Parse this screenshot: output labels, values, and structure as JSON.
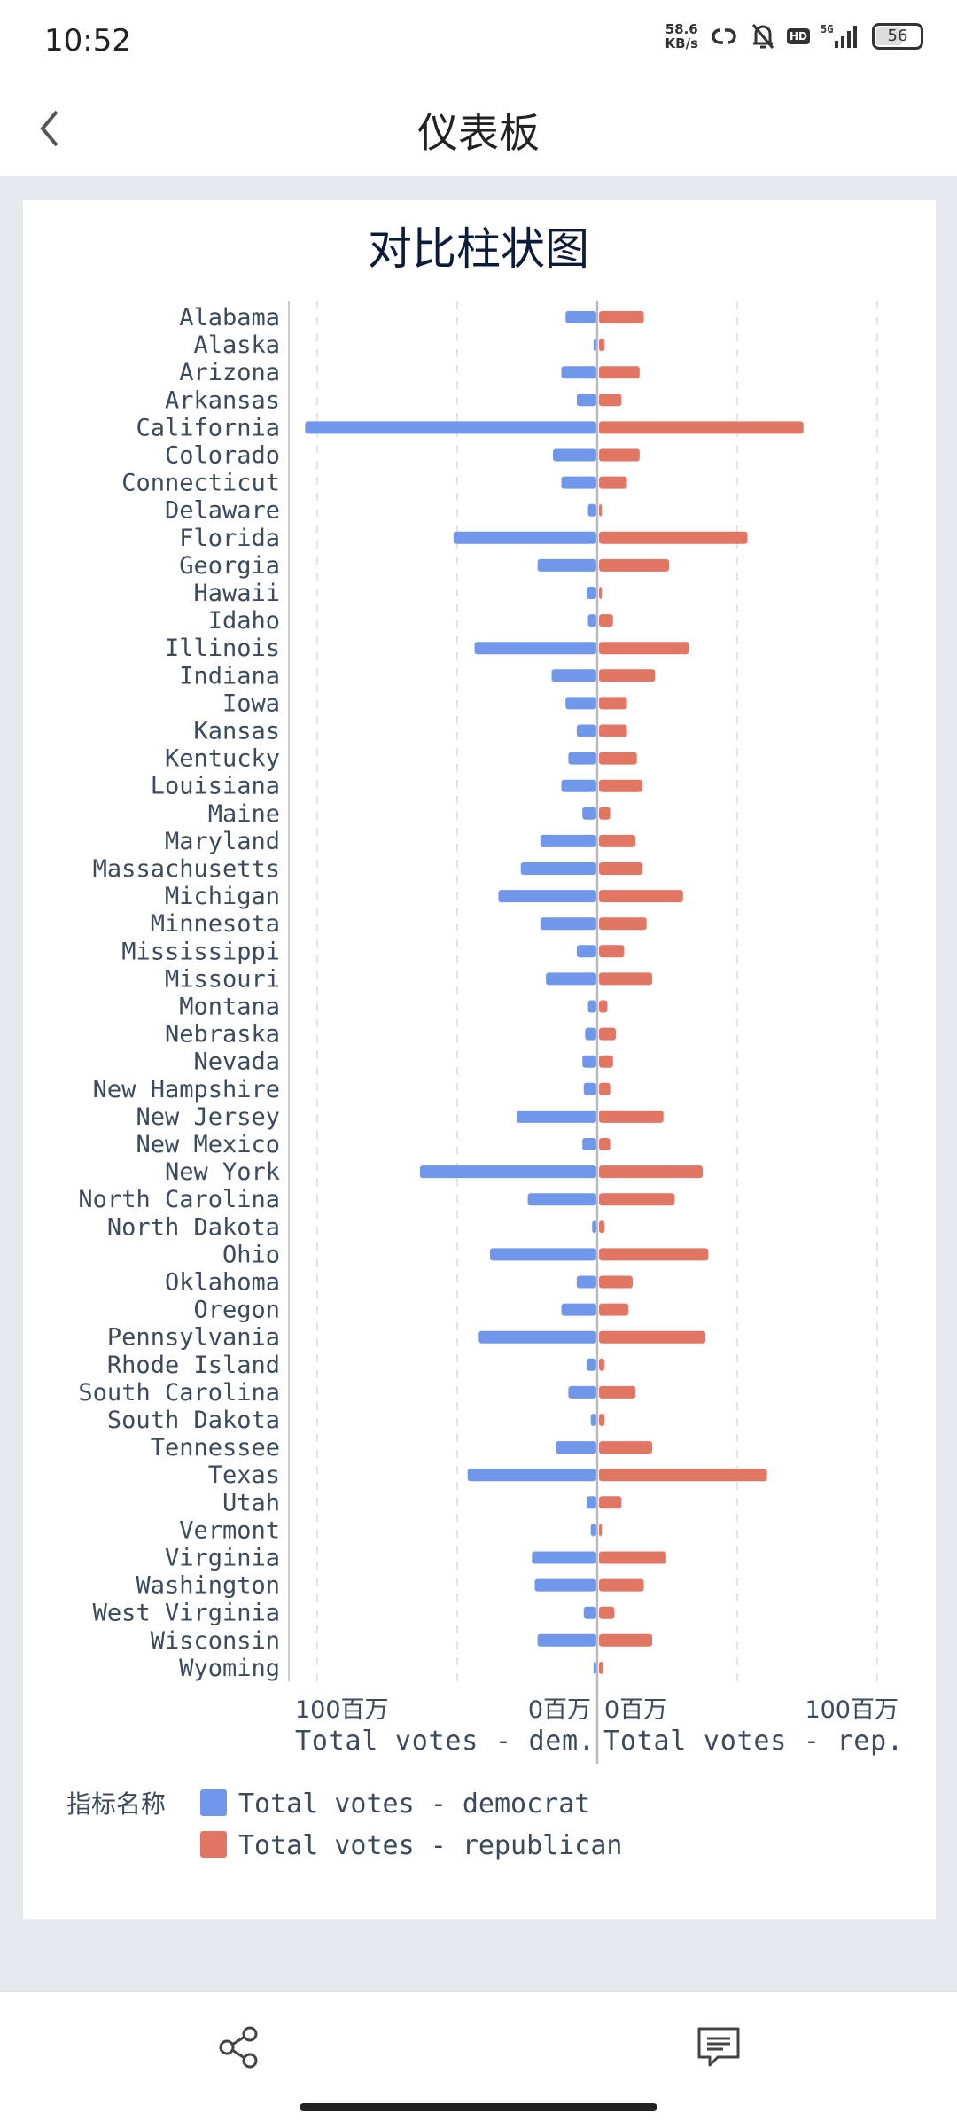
{
  "status_bar": {
    "time": "10:52",
    "net_speed_value": "58.6",
    "net_speed_unit": "KB/s",
    "hd": "HD",
    "network": "5G",
    "battery": "56"
  },
  "header": {
    "title": "仪表板"
  },
  "colors": {
    "democrat": "#7097ea",
    "republican": "#e07663"
  },
  "chart_data": {
    "type": "bar",
    "title": "对比柱状图",
    "orientation": "horizontal-butterfly",
    "categories": [
      "Alabama",
      "Alaska",
      "Arizona",
      "Arkansas",
      "California",
      "Colorado",
      "Connecticut",
      "Delaware",
      "Florida",
      "Georgia",
      "Hawaii",
      "Idaho",
      "Illinois",
      "Indiana",
      "Iowa",
      "Kansas",
      "Kentucky",
      "Louisiana",
      "Maine",
      "Maryland",
      "Massachusetts",
      "Michigan",
      "Minnesota",
      "Mississippi",
      "Missouri",
      "Montana",
      "Nebraska",
      "Nevada",
      "New Hampshire",
      "New Jersey",
      "New Mexico",
      "New York",
      "North Carolina",
      "North Dakota",
      "Ohio",
      "Oklahoma",
      "Oregon",
      "Pennsylvania",
      "Rhode Island",
      "South Carolina",
      "South Dakota",
      "Tennessee",
      "Texas",
      "Utah",
      "Vermont",
      "Virginia",
      "Washington",
      "West Virginia",
      "Wisconsin",
      "Wyoming"
    ],
    "series": [
      {
        "name": "Total votes - democrat",
        "axis_title": "Total votes - dem.",
        "values": [
          11,
          1,
          12.5,
          7,
          104,
          15.5,
          12.5,
          3,
          51,
          21,
          3.5,
          3,
          43.5,
          16,
          11,
          7,
          10,
          12.5,
          5,
          20,
          27,
          35,
          20,
          7,
          18,
          3,
          4,
          5,
          4.5,
          28.5,
          5,
          63,
          24.5,
          1.5,
          38,
          7,
          12.5,
          42,
          3.5,
          10,
          2,
          14.5,
          46,
          3.5,
          2,
          23,
          22,
          4.5,
          21,
          1
        ]
      },
      {
        "name": "Total votes - republican",
        "axis_title": "Total votes - rep.",
        "values": [
          16,
          2,
          14.5,
          8,
          73,
          14.5,
          10,
          1,
          53,
          25,
          1,
          5,
          32,
          20,
          10,
          10,
          13.5,
          15.5,
          4,
          13,
          15.5,
          30,
          17,
          9,
          19,
          3,
          6,
          5,
          4,
          23,
          4,
          37,
          27,
          2,
          39,
          12,
          10.5,
          38,
          2,
          13,
          2,
          19,
          60,
          8,
          1,
          24,
          16,
          5.5,
          19,
          1.5
        ]
      },
      "unit: 百万 (millions)"
    ],
    "xlim": [
      0,
      100
    ],
    "ticks": {
      "left": [
        "100百万",
        "0百万"
      ],
      "right": [
        "0百万",
        "100百万"
      ]
    },
    "grid": true,
    "legend": {
      "title": "指标名称",
      "position": "bottom-left",
      "items": [
        "Total votes - democrat",
        "Total votes - republican"
      ]
    }
  }
}
